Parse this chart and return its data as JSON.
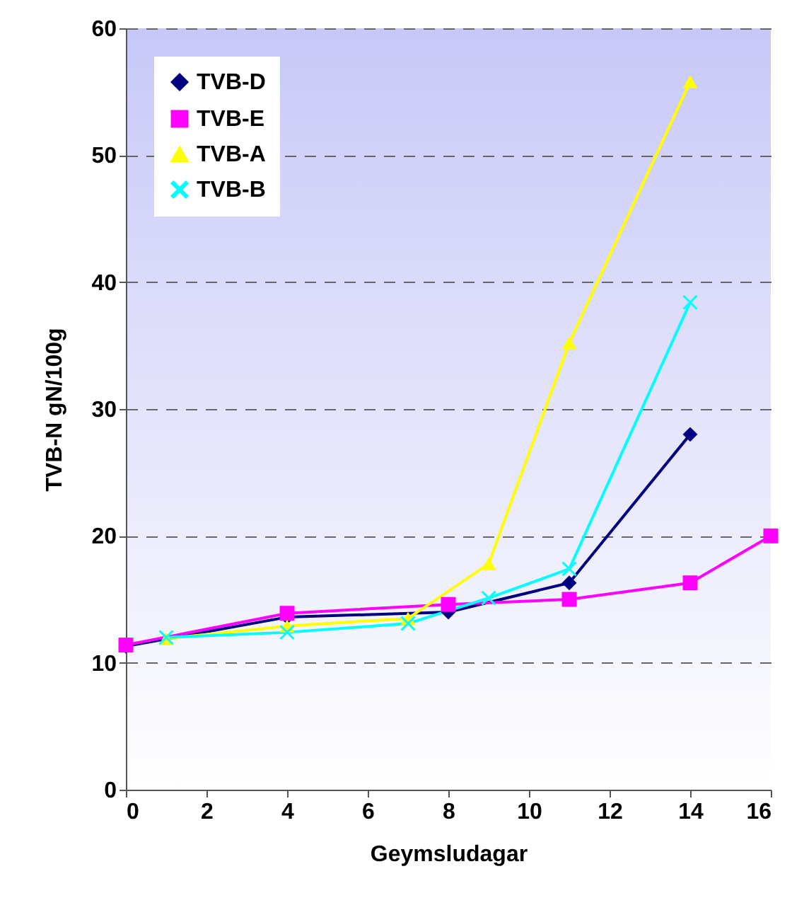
{
  "chart_data": {
    "type": "line",
    "xlabel": "Geymsludagar",
    "ylabel": "TVB-N gN/100g",
    "xlim": [
      0,
      16
    ],
    "xticks": [
      0,
      2,
      4,
      6,
      8,
      10,
      12,
      14,
      16
    ],
    "ylim": [
      0,
      60
    ],
    "yticks": [
      0,
      10,
      20,
      30,
      40,
      50,
      60
    ],
    "grid": "y",
    "legend": "top left",
    "line_style": "solid",
    "series": [
      {
        "name": "TVB-D",
        "color": "#000080",
        "marker": "diamond",
        "x": [
          0,
          4,
          8,
          11,
          14
        ],
        "values": [
          11.3,
          13.6,
          14.0,
          16.3,
          28.0
        ]
      },
      {
        "name": "TVB-E",
        "color": "#ff00ff",
        "marker": "square",
        "x": [
          0,
          4,
          8,
          11,
          14,
          16
        ],
        "values": [
          11.4,
          13.9,
          14.6,
          15.0,
          16.3,
          20.0
        ]
      },
      {
        "name": "TVB-A",
        "color": "#ffff00",
        "marker": "triangle",
        "x": [
          1,
          4,
          7,
          9,
          11,
          14
        ],
        "values": [
          11.9,
          12.9,
          13.5,
          17.8,
          35.2,
          55.8
        ]
      },
      {
        "name": "TVB-B",
        "color": "#00ffff",
        "marker": "cross",
        "x": [
          1,
          4,
          7,
          9,
          11,
          14
        ],
        "values": [
          12.0,
          12.4,
          13.1,
          15.1,
          17.4,
          38.4
        ]
      }
    ]
  }
}
